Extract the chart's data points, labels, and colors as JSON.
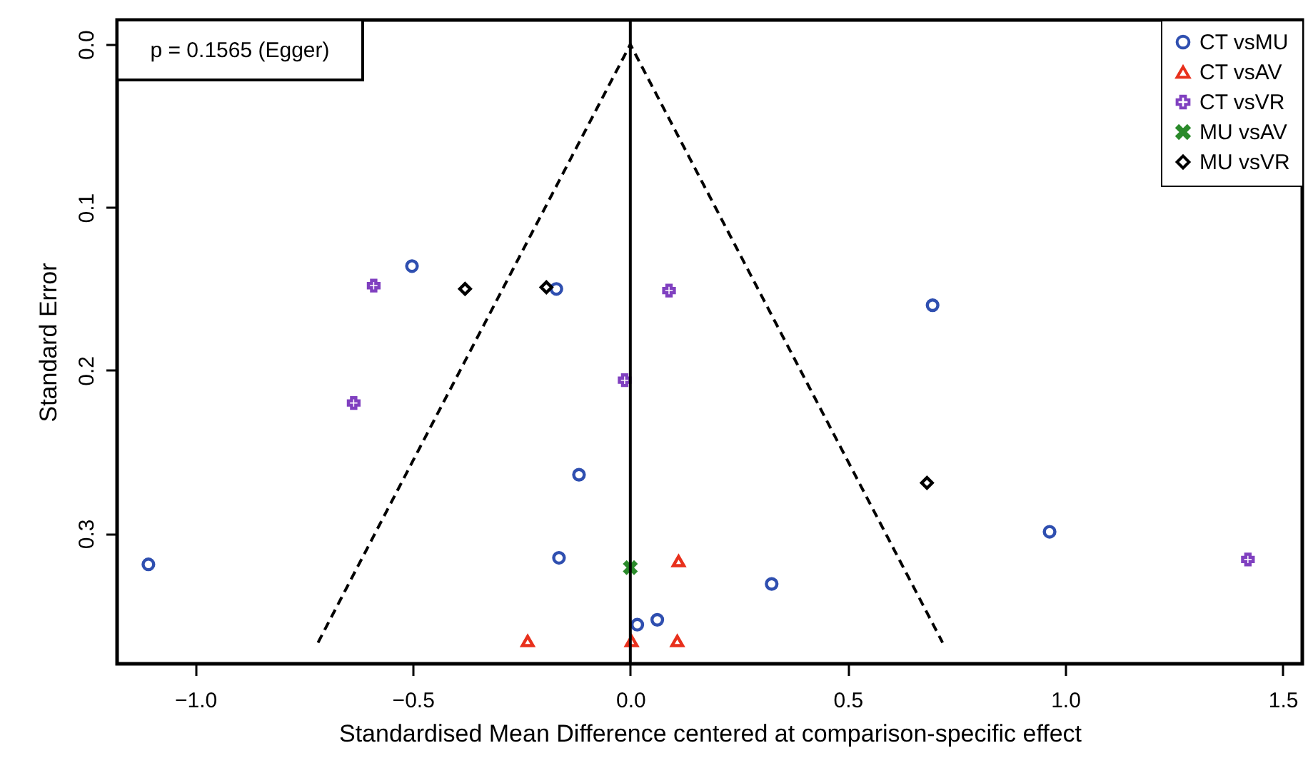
{
  "chart_data": {
    "type": "scatter",
    "xlabel": "Standardised Mean Difference centered at comparison-specific effect",
    "ylabel": "Standard Error",
    "annotations": [
      "p = 0.1565 (Egger)"
    ],
    "xlim": [
      -1.18,
      1.545
    ],
    "ylim": [
      0.38,
      -0.015
    ],
    "xticks": [
      {
        "value": -1.0,
        "label": "−1.0"
      },
      {
        "value": -0.5,
        "label": "−0.5"
      },
      {
        "value": 0,
        "label": "0.0"
      },
      {
        "value": 0.5,
        "label": "0.5"
      },
      {
        "value": 1.0,
        "label": "1.0"
      },
      {
        "value": 1.5,
        "label": "1.5"
      }
    ],
    "yticks": [
      {
        "value": 0,
        "label": "0.0"
      },
      {
        "value": 0.1,
        "label": "0.1"
      },
      {
        "value": 0.2,
        "label": "0.2"
      },
      {
        "value": 0.3,
        "label": "0.3"
      }
    ],
    "legend": "top right",
    "grid": false,
    "ref_lines": [
      {
        "axis": "x",
        "value": 0,
        "color": "#000000",
        "line_style": "solid"
      }
    ],
    "series": [
      {
        "type": "line",
        "color": "#000000",
        "line_style": "dashed",
        "marker": "none",
        "x": [
          -0.718,
          0,
          0.718
        ],
        "values": [
          0.367,
          0,
          0.367
        ]
      },
      {
        "name": "CT vsMU",
        "color": "#2f4fb0",
        "marker": "circle",
        "x": [
          -0.502,
          -0.17,
          0.695,
          -0.118,
          -0.164,
          -1.108,
          0.964,
          0.325,
          0.062,
          0.016
        ],
        "values": [
          0.136,
          0.15,
          0.16,
          0.264,
          0.315,
          0.319,
          0.299,
          0.331,
          0.353,
          0.356
        ]
      },
      {
        "name": "CT vsAV",
        "color": "#e8301c",
        "marker": "triangle",
        "x": [
          0.111,
          0.108,
          -0.236,
          0.003
        ],
        "values": [
          0.317,
          0.366,
          0.366,
          0.366
        ]
      },
      {
        "name": "CT vsVR",
        "color": "#8040c0",
        "marker": "cross",
        "x": [
          -0.59,
          -0.636,
          -0.013,
          0.089,
          1.42
        ],
        "values": [
          0.148,
          0.22,
          0.206,
          0.151,
          0.316
        ]
      },
      {
        "name": "MU vsAV",
        "color": "#2a8a2a",
        "marker": "x",
        "x": [
          0.0
        ],
        "values": [
          0.321
        ]
      },
      {
        "name": "MU vsVR",
        "color": "#000000",
        "marker": "diamond",
        "x": [
          -0.38,
          -0.193,
          0.682
        ],
        "values": [
          0.15,
          0.149,
          0.269
        ]
      }
    ]
  }
}
